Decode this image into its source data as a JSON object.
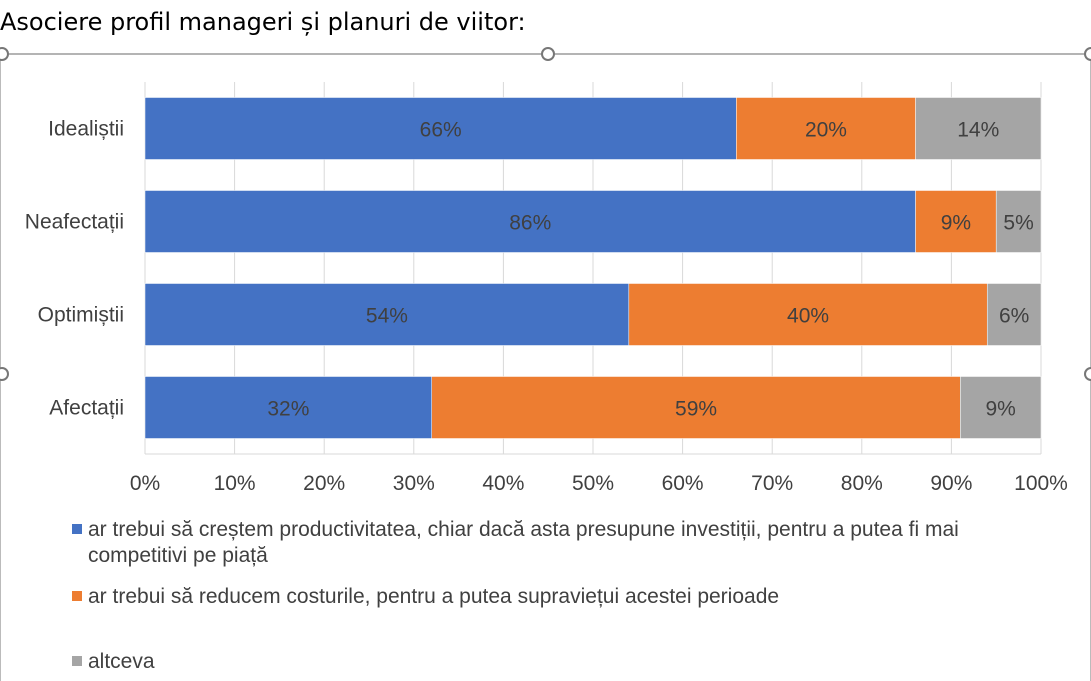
{
  "page": {
    "title": "Asociere profil manageri și planuri de viitor:"
  },
  "chart_data": {
    "type": "bar",
    "orientation": "horizontal",
    "stacked": true,
    "percent_stacked": true,
    "categories": [
      "Idealiștii",
      "Neafectații",
      "Optimiștii",
      "Afectații"
    ],
    "series": [
      {
        "name": "ar trebui să creștem productivitatea, chiar dacă asta presupune investiții, pentru a putea fi mai competitivi pe piață",
        "color": "#4472C4",
        "values": [
          66,
          86,
          54,
          32
        ],
        "labels": [
          "66%",
          "86%",
          "54%",
          "32%"
        ]
      },
      {
        "name": "ar trebui să reducem costurile, pentru a putea supraviețui acestei perioade",
        "color": "#ED7D31",
        "values": [
          20,
          9,
          40,
          59
        ],
        "labels": [
          "20%",
          "9%",
          "40%",
          "59%"
        ]
      },
      {
        "name": "altceva",
        "color": "#A5A5A5",
        "values": [
          14,
          5,
          6,
          9
        ],
        "labels": [
          "14%",
          "5%",
          "6%",
          "9%"
        ]
      }
    ],
    "xlim": [
      0,
      100
    ],
    "xticks": [
      "0%",
      "10%",
      "20%",
      "30%",
      "40%",
      "50%",
      "60%",
      "70%",
      "80%",
      "90%",
      "100%"
    ],
    "grid": true,
    "legend_position": "bottom"
  }
}
